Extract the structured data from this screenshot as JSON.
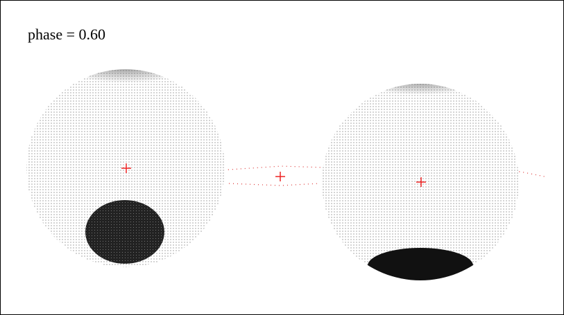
{
  "title": "phase = 0.60"
}
